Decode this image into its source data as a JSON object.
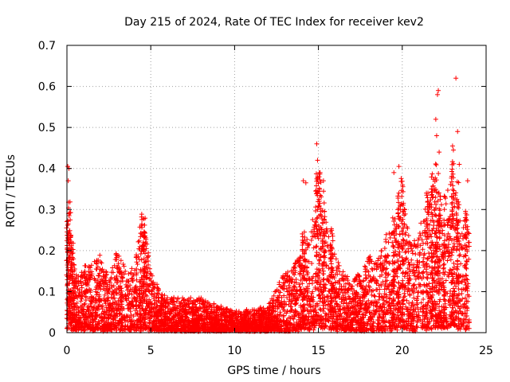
{
  "chart_data": {
    "type": "scatter",
    "title": "Day 215 of 2024, Rate Of TEC Index for receiver kev2",
    "xlabel": "GPS time / hours",
    "ylabel": "ROTI / TECUs",
    "xlim": [
      0,
      25
    ],
    "ylim": [
      0,
      0.7
    ],
    "xticks": [
      0,
      5,
      10,
      15,
      20,
      25
    ],
    "yticks": [
      0,
      0.1,
      0.2,
      0.3,
      0.4,
      0.5,
      0.6,
      0.7
    ],
    "xtick_labels": [
      "0",
      "5",
      "10",
      "15",
      "20",
      "25"
    ],
    "ytick_labels": [
      "0",
      "0.1",
      "0.2",
      "0.3",
      "0.4",
      "0.5",
      "0.6",
      "0.7"
    ],
    "grid": true,
    "marker": "+",
    "color": "#ff0000",
    "envelope": {
      "description": "approximate upper envelope of ROTI scatter (hour, ROTI) used to generate dense point cloud",
      "x": [
        0,
        0.1,
        0.3,
        0.6,
        1.0,
        1.5,
        2.0,
        2.5,
        3.0,
        3.5,
        4.0,
        4.5,
        5.0,
        5.5,
        6.0,
        7.0,
        8.0,
        9.0,
        10.0,
        11.0,
        12.0,
        12.5,
        13.0,
        13.5,
        14.0,
        14.5,
        15.0,
        15.5,
        16.0,
        16.5,
        17.0,
        17.5,
        18.0,
        18.5,
        19.0,
        19.5,
        20.0,
        20.5,
        21.0,
        21.5,
        22.0,
        22.5,
        23.0,
        23.5,
        24.0
      ],
      "y": [
        0.16,
        0.3,
        0.2,
        0.13,
        0.15,
        0.16,
        0.18,
        0.13,
        0.19,
        0.15,
        0.15,
        0.27,
        0.15,
        0.1,
        0.08,
        0.08,
        0.08,
        0.06,
        0.05,
        0.05,
        0.06,
        0.1,
        0.14,
        0.15,
        0.2,
        0.23,
        0.36,
        0.26,
        0.18,
        0.14,
        0.12,
        0.14,
        0.18,
        0.16,
        0.23,
        0.24,
        0.33,
        0.2,
        0.24,
        0.3,
        0.38,
        0.3,
        0.37,
        0.28,
        0.25
      ]
    },
    "outliers": [
      {
        "x": 0.05,
        "y": 0.405
      },
      {
        "x": 0.12,
        "y": 0.4
      },
      {
        "x": 0.08,
        "y": 0.37
      },
      {
        "x": 14.1,
        "y": 0.37
      },
      {
        "x": 14.25,
        "y": 0.365
      },
      {
        "x": 14.9,
        "y": 0.46
      },
      {
        "x": 14.95,
        "y": 0.42
      },
      {
        "x": 15.1,
        "y": 0.39
      },
      {
        "x": 15.3,
        "y": 0.37
      },
      {
        "x": 19.8,
        "y": 0.405
      },
      {
        "x": 19.5,
        "y": 0.39
      },
      {
        "x": 22.0,
        "y": 0.52
      },
      {
        "x": 22.05,
        "y": 0.48
      },
      {
        "x": 22.1,
        "y": 0.58
      },
      {
        "x": 22.15,
        "y": 0.59
      },
      {
        "x": 22.2,
        "y": 0.44
      },
      {
        "x": 23.2,
        "y": 0.62
      },
      {
        "x": 23.3,
        "y": 0.49
      },
      {
        "x": 23.0,
        "y": 0.455
      },
      {
        "x": 23.05,
        "y": 0.445
      },
      {
        "x": 23.4,
        "y": 0.41
      },
      {
        "x": 23.9,
        "y": 0.37
      }
    ]
  }
}
